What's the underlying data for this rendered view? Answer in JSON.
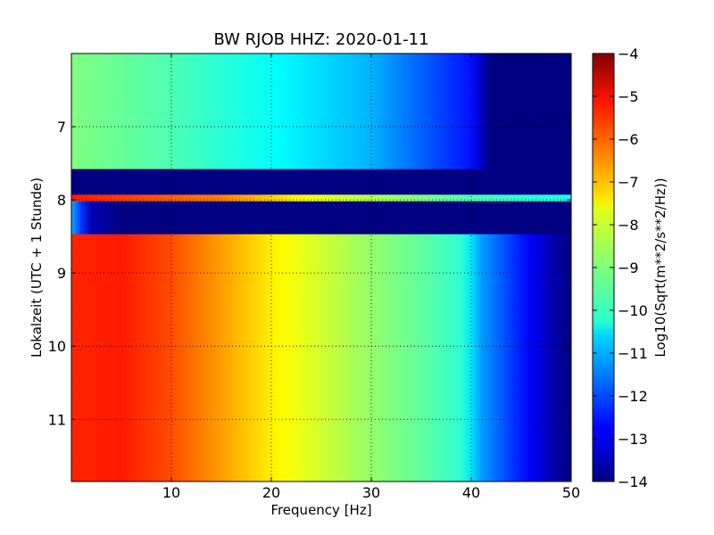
{
  "chart_data": {
    "type": "heatmap",
    "title": "BW RJOB HHZ: 2020-01-11",
    "xlabel": "Frequency [Hz]",
    "ylabel": "Lokalzeit (UTC + 1 Stunde)",
    "xlim": [
      0,
      50
    ],
    "ylim": [
      6,
      11.85
    ],
    "y_inverted": true,
    "x_ticks": [
      10,
      20,
      30,
      40,
      50
    ],
    "y_ticks": [
      7,
      8,
      9,
      10,
      11
    ],
    "grid": true,
    "colorbar": {
      "label": "Log10(Sqrt(m**2/s**2/Hz))",
      "range": [
        -14,
        -4
      ],
      "ticks": [
        -4,
        -5,
        -6,
        -7,
        -8,
        -9,
        -10,
        -11,
        -12,
        -13,
        -14
      ],
      "colormap": "jet"
    },
    "bands": [
      {
        "time_start": 6.0,
        "time_end": 7.58,
        "profile": [
          {
            "freq": 0,
            "value": -9.0
          },
          {
            "freq": 10,
            "value": -9.5
          },
          {
            "freq": 20,
            "value": -10.2
          },
          {
            "freq": 30,
            "value": -11.0
          },
          {
            "freq": 35,
            "value": -11.8
          },
          {
            "freq": 40,
            "value": -12.6
          },
          {
            "freq": 42,
            "value": -14.0
          },
          {
            "freq": 50,
            "value": -14.0
          }
        ]
      },
      {
        "time_start": 7.58,
        "time_end": 7.93,
        "profile": [
          {
            "freq": 0,
            "value": -14.0
          },
          {
            "freq": 50,
            "value": -14.0
          }
        ]
      },
      {
        "time_start": 7.93,
        "time_end": 8.02,
        "profile": [
          {
            "freq": 0,
            "value": -5.5
          },
          {
            "freq": 15,
            "value": -6.5
          },
          {
            "freq": 25,
            "value": -8.0
          },
          {
            "freq": 40,
            "value": -9.5
          },
          {
            "freq": 50,
            "value": -10.0
          }
        ]
      },
      {
        "time_start": 8.02,
        "time_end": 8.47,
        "profile": [
          {
            "freq": 0,
            "value": -11.0
          },
          {
            "freq": 2,
            "value": -13.5
          },
          {
            "freq": 5,
            "value": -14.0
          },
          {
            "freq": 50,
            "value": -14.0
          }
        ]
      },
      {
        "time_start": 8.47,
        "time_end": 11.85,
        "profile": [
          {
            "freq": 0,
            "value": -5.6
          },
          {
            "freq": 5,
            "value": -5.5
          },
          {
            "freq": 10,
            "value": -6.0
          },
          {
            "freq": 15,
            "value": -6.8
          },
          {
            "freq": 20,
            "value": -7.6
          },
          {
            "freq": 25,
            "value": -8.2
          },
          {
            "freq": 30,
            "value": -8.8
          },
          {
            "freq": 35,
            "value": -9.3
          },
          {
            "freq": 39,
            "value": -9.8
          },
          {
            "freq": 41,
            "value": -11.2
          },
          {
            "freq": 45,
            "value": -12.5
          },
          {
            "freq": 48,
            "value": -13.5
          },
          {
            "freq": 50,
            "value": -14.0
          }
        ]
      }
    ]
  }
}
